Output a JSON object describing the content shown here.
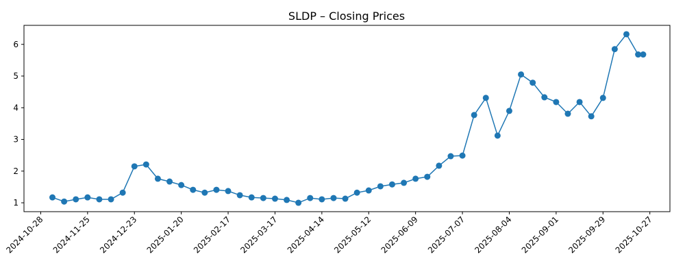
{
  "chart_data": {
    "type": "line",
    "title": "SLDP – Closing Prices",
    "xlabel": "",
    "ylabel": "",
    "color": "#1f77b4",
    "marker": "circle",
    "grid": false,
    "legend": "none",
    "xlim": [
      "2024-10-18",
      "2025-11-08"
    ],
    "ylim": [
      0.72,
      6.6
    ],
    "x_ticks": [
      "2024-10-28",
      "2024-11-25",
      "2024-12-23",
      "2025-01-20",
      "2025-02-17",
      "2025-03-17",
      "2025-04-14",
      "2025-05-12",
      "2025-06-09",
      "2025-07-07",
      "2025-08-04",
      "2025-09-01",
      "2025-09-29",
      "2025-10-27"
    ],
    "y_ticks": [
      1,
      2,
      3,
      4,
      5,
      6
    ],
    "x": [
      "2024-11-04",
      "2024-11-11",
      "2024-11-18",
      "2024-11-25",
      "2024-12-02",
      "2024-12-09",
      "2024-12-16",
      "2024-12-23",
      "2024-12-30",
      "2025-01-06",
      "2025-01-13",
      "2025-01-20",
      "2025-01-27",
      "2025-02-03",
      "2025-02-10",
      "2025-02-17",
      "2025-02-24",
      "2025-03-03",
      "2025-03-10",
      "2025-03-17",
      "2025-03-24",
      "2025-03-31",
      "2025-04-07",
      "2025-04-14",
      "2025-04-21",
      "2025-04-28",
      "2025-05-05",
      "2025-05-12",
      "2025-05-19",
      "2025-05-26",
      "2025-06-02",
      "2025-06-09",
      "2025-06-16",
      "2025-06-23",
      "2025-06-30",
      "2025-07-07",
      "2025-07-14",
      "2025-07-21",
      "2025-07-28",
      "2025-08-04",
      "2025-08-11",
      "2025-08-18",
      "2025-08-25",
      "2025-09-01",
      "2025-09-08",
      "2025-09-15",
      "2025-09-22",
      "2025-09-29",
      "2025-10-06",
      "2025-10-13",
      "2025-10-20",
      "2025-10-23"
    ],
    "y": [
      1.17,
      1.04,
      1.11,
      1.17,
      1.11,
      1.11,
      1.32,
      2.15,
      2.21,
      1.76,
      1.67,
      1.56,
      1.41,
      1.32,
      1.41,
      1.37,
      1.24,
      1.17,
      1.15,
      1.13,
      1.09,
      1.0,
      1.15,
      1.11,
      1.15,
      1.13,
      1.32,
      1.39,
      1.52,
      1.58,
      1.63,
      1.76,
      1.82,
      2.17,
      2.47,
      2.49,
      3.77,
      4.31,
      3.12,
      3.9,
      5.05,
      4.79,
      4.33,
      4.18,
      3.81,
      4.18,
      3.73,
      4.31,
      5.85,
      6.32,
      5.68,
      5.68
    ]
  }
}
